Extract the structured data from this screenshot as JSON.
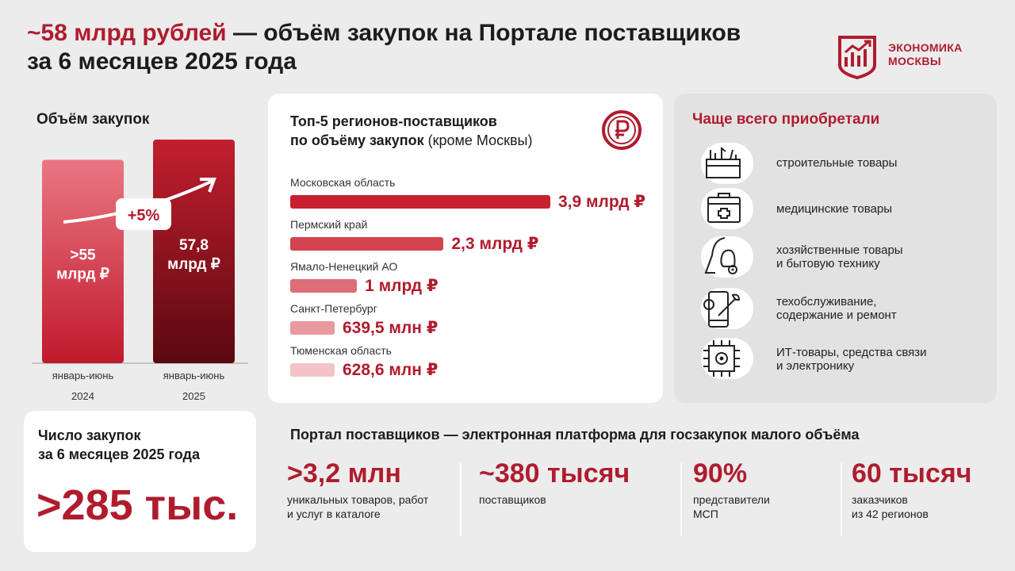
{
  "header": {
    "title_accent": "~58 млрд рублей",
    "title_rest_line1": " — объём закупок на Портале поставщиков",
    "title_line2": "за 6 месяцев 2025 года"
  },
  "logo": {
    "line1": "ЭКОНОМИКА",
    "line2": "МОСКВЫ",
    "icon": "chart-shield-logo-icon"
  },
  "volume_chart": {
    "title": "Объём закупок",
    "growth_label": "+5%"
  },
  "regions_card": {
    "title_line1": "Топ-5 регионов-поставщиков",
    "title_line2_bold": "по объёму закупок",
    "title_line2_rest": " (кроме Москвы)",
    "icon": "ruble-icon"
  },
  "categories": {
    "title": "Чаще всего приобретали",
    "items": [
      {
        "icon": "toolbox-icon",
        "line1": "строительные товары",
        "line2": ""
      },
      {
        "icon": "medical-kit-icon",
        "line1": "медицинские товары",
        "line2": ""
      },
      {
        "icon": "vacuum-cleaner-icon",
        "line1": "хозяйственные товары",
        "line2": "и бытовую технику"
      },
      {
        "icon": "phone-wrench-icon",
        "line1": "техобслуживание,",
        "line2": "содержание и ремонт"
      },
      {
        "icon": "chip-gear-icon",
        "line1": "ИТ-товары, средства связи",
        "line2": "и электронику"
      }
    ]
  },
  "purchases_count": {
    "title_line1": "Число закупок",
    "title_line2": "за 6 месяцев 2025 года",
    "value": ">285 тыс."
  },
  "portal": {
    "title": "Портал поставщиков — электронная платформа для госзакупок малого объёма",
    "stats": [
      {
        "value": ">3,2 млн",
        "line1": "уникальных товаров, работ",
        "line2": "и услуг в каталоге"
      },
      {
        "value": "~380 тысяч",
        "line1": "поставщиков",
        "line2": ""
      },
      {
        "value": "90%",
        "line1": "представители",
        "line2": "МСП"
      },
      {
        "value": "60 тысяч",
        "line1": "заказчиков",
        "line2": "из 42 регионов"
      }
    ]
  },
  "colors": {
    "accent": "#b01c2e",
    "dark_red": "#5e0a14",
    "light_red": "#e8717d"
  },
  "chart_data": [
    {
      "type": "bar",
      "title": "Объём закупок",
      "categories": [
        "январь-июнь 2024",
        "январь-июнь 2025"
      ],
      "category_lines": [
        [
          "январь-июнь",
          "2024"
        ],
        [
          "январь-июнь",
          "2025"
        ]
      ],
      "values": [
        55,
        57.8
      ],
      "value_labels": [
        [
          ">55",
          "млрд ₽"
        ],
        [
          "57,8",
          "млрд ₽"
        ]
      ],
      "unit": "млрд ₽",
      "annotation": "+5%"
    },
    {
      "type": "bar",
      "orientation": "horizontal",
      "title": "Топ-5 регионов-поставщиков по объёму закупок (кроме Москвы)",
      "categories": [
        "Московская область",
        "Пермский край",
        "Ямало-Ненецкий АО",
        "Санкт-Петербург",
        "Тюменская область"
      ],
      "values": [
        3.9,
        2.3,
        1.0,
        0.6395,
        0.6286
      ],
      "unit": "млрд ₽",
      "value_labels": [
        "3,9 млрд ₽",
        "2,3 млрд ₽",
        "1 млрд ₽",
        "639,5 млн ₽",
        "628,6 млн ₽"
      ],
      "bar_colors": [
        "#c8202f",
        "#d2434f",
        "#dd6d76",
        "#e9999f",
        "#f3c4c7"
      ]
    }
  ]
}
